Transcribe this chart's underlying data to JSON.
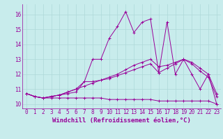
{
  "xlabel": "Windchill (Refroidissement éolien,°C)",
  "bg_color": "#c8ecec",
  "line_color": "#990099",
  "marker": "+",
  "xlim": [
    -0.5,
    23.5
  ],
  "ylim": [
    9.7,
    16.7
  ],
  "xticks": [
    0,
    1,
    2,
    3,
    4,
    5,
    6,
    7,
    8,
    9,
    10,
    11,
    12,
    13,
    14,
    15,
    16,
    17,
    18,
    19,
    20,
    21,
    22,
    23
  ],
  "yticks": [
    10,
    11,
    12,
    13,
    14,
    15,
    16
  ],
  "series": [
    {
      "y": [
        10.7,
        10.5,
        10.4,
        10.4,
        10.4,
        10.4,
        10.4,
        10.4,
        10.4,
        10.4,
        10.3,
        10.3,
        10.3,
        10.3,
        10.3,
        10.3,
        10.2,
        10.2,
        10.2,
        10.2,
        10.2,
        10.2,
        10.2,
        10.0
      ],
      "marker": true
    },
    {
      "y": [
        10.7,
        10.5,
        10.4,
        10.5,
        10.6,
        10.7,
        10.8,
        11.5,
        11.5,
        11.6,
        11.7,
        11.9,
        12.1,
        12.3,
        12.5,
        12.7,
        12.1,
        12.4,
        12.7,
        13.0,
        12.7,
        12.2,
        11.8,
        10.5
      ],
      "marker": true
    },
    {
      "y": [
        10.7,
        10.5,
        10.4,
        10.5,
        10.6,
        10.8,
        11.0,
        11.2,
        11.4,
        11.6,
        11.8,
        12.0,
        12.3,
        12.6,
        12.8,
        13.0,
        12.5,
        12.6,
        12.8,
        13.0,
        12.8,
        12.4,
        12.0,
        10.7
      ],
      "marker": true
    },
    {
      "y": [
        10.7,
        10.5,
        10.4,
        10.5,
        10.6,
        10.8,
        11.0,
        11.5,
        13.0,
        13.0,
        14.4,
        15.2,
        16.2,
        14.8,
        15.5,
        15.7,
        12.1,
        15.5,
        12.0,
        13.0,
        12.0,
        11.0,
        12.0,
        10.0
      ],
      "marker": true
    }
  ],
  "grid_color": "#aed8d8",
  "tick_fontsize": 5.5,
  "label_fontsize": 6.5
}
